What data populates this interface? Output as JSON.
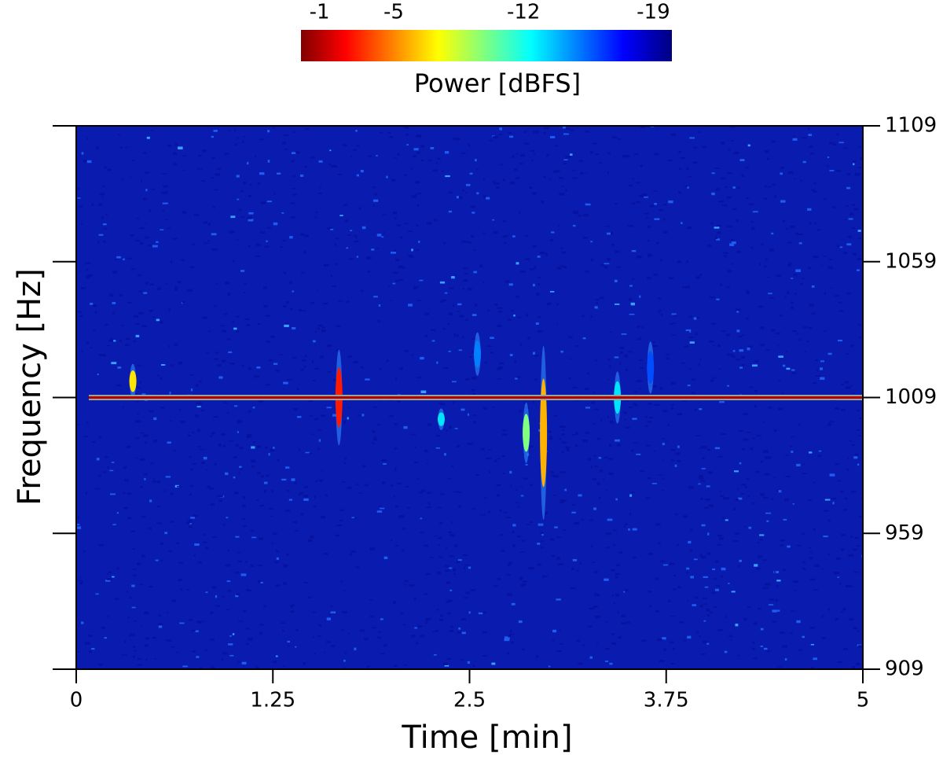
{
  "chart_data": {
    "type": "spectrogram",
    "xlabel": "Time [min]",
    "ylabel": "Frequency [Hz]",
    "xlim": [
      0,
      5
    ],
    "ylim": [
      909,
      1109
    ],
    "xticks": [
      0,
      1.25,
      2.5,
      3.75,
      5
    ],
    "yticks": [
      909,
      959,
      1009,
      1059,
      1109
    ],
    "colorbar": {
      "label": "Power [dBFS]",
      "clim": [
        0,
        -20
      ],
      "ticks": [
        -1,
        -5,
        -12,
        -19
      ],
      "colormap": "jet-reversed"
    },
    "carrier": {
      "frequency": 1009,
      "power": -1,
      "time": [
        0.08,
        5
      ]
    },
    "events": {
      "time": [
        0.36,
        1.67,
        2.32,
        2.86,
        2.97,
        3.44,
        2.55,
        3.65
      ],
      "frequency": [
        1015,
        1009,
        1001,
        996,
        996,
        1009,
        1025,
        1020
      ],
      "power": [
        -7,
        -3,
        -13,
        -10,
        -6,
        -13,
        -15,
        -16
      ],
      "extent_hz": [
        8,
        22,
        5,
        14,
        40,
        12,
        10,
        12
      ]
    }
  }
}
